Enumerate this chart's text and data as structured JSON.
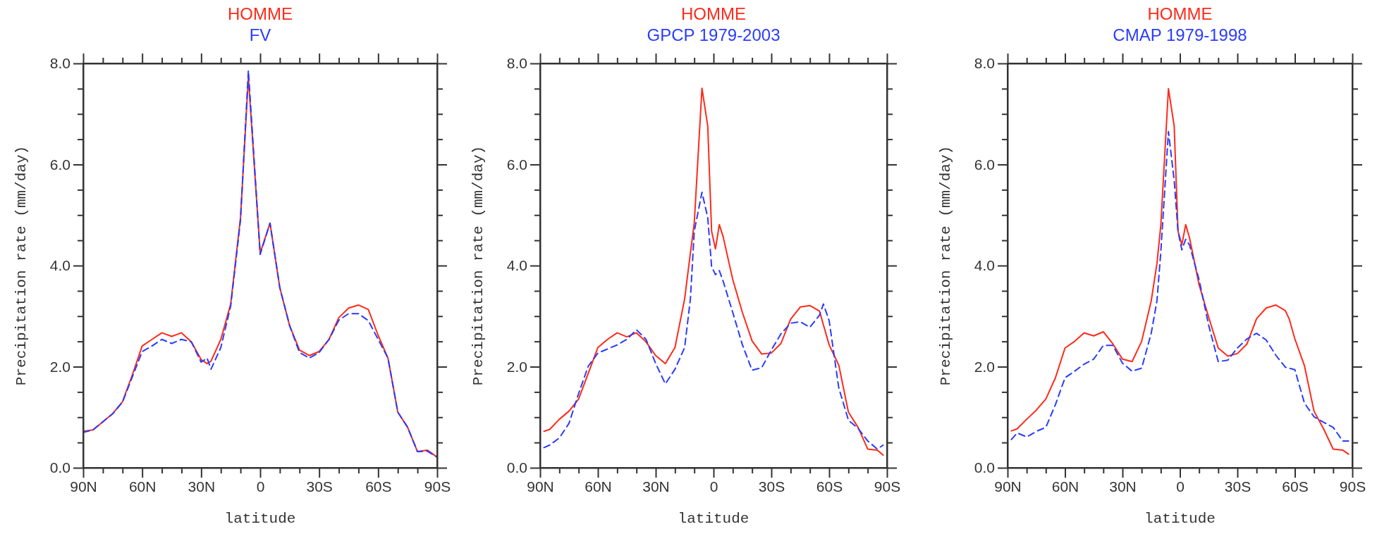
{
  "chart_data": [
    {
      "type": "line",
      "xlabel": "latitude",
      "ylabel": "Precipitation rate (mm/day)",
      "x": [
        90,
        85,
        80,
        75,
        70,
        65,
        60,
        55,
        50,
        45,
        40,
        35,
        30,
        27,
        25,
        20,
        15,
        10,
        6,
        0,
        -5,
        -10,
        -15,
        -20,
        -25,
        -30,
        -35,
        -40,
        -45,
        -50,
        -55,
        -60,
        -65,
        -70,
        -75,
        -80,
        -85,
        -90
      ],
      "series": [
        {
          "name": "HOMME",
          "color": "#ff2a1a",
          "line_style": "solid",
          "values": [
            0.72,
            0.75,
            0.91,
            1.07,
            1.31,
            1.84,
            2.41,
            2.54,
            2.67,
            2.6,
            2.67,
            2.49,
            2.14,
            2.06,
            2.11,
            2.54,
            3.24,
            4.95,
            7.73,
            4.25,
            4.84,
            3.56,
            2.81,
            2.33,
            2.22,
            2.3,
            2.54,
            2.97,
            3.16,
            3.22,
            3.13,
            2.62,
            2.17,
            1.1,
            0.8,
            0.32,
            0.35,
            0.21
          ]
        },
        {
          "name": "FV",
          "color": "#2a3cff",
          "line_style": "dashed",
          "values": [
            0.7,
            0.75,
            0.91,
            1.07,
            1.3,
            1.8,
            2.3,
            2.41,
            2.54,
            2.46,
            2.54,
            2.49,
            2.09,
            2.17,
            1.95,
            2.38,
            3.2,
            4.9,
            7.86,
            4.22,
            4.84,
            3.56,
            2.81,
            2.28,
            2.17,
            2.28,
            2.54,
            2.92,
            3.05,
            3.05,
            2.91,
            2.54,
            2.17,
            1.1,
            0.8,
            0.32,
            0.33,
            0.21
          ]
        }
      ],
      "xlim": [
        90,
        -90
      ],
      "xticks": [
        {
          "value": 90,
          "label": "90N"
        },
        {
          "value": 80,
          "label": null
        },
        {
          "value": 70,
          "label": null
        },
        {
          "value": 60,
          "label": "60N"
        },
        {
          "value": 50,
          "label": null
        },
        {
          "value": 40,
          "label": null
        },
        {
          "value": 30,
          "label": "30N"
        },
        {
          "value": 20,
          "label": null
        },
        {
          "value": 10,
          "label": null
        },
        {
          "value": 0,
          "label": "0"
        },
        {
          "value": -10,
          "label": null
        },
        {
          "value": -20,
          "label": null
        },
        {
          "value": -30,
          "label": "30S"
        },
        {
          "value": -40,
          "label": null
        },
        {
          "value": -50,
          "label": null
        },
        {
          "value": -60,
          "label": "60S"
        },
        {
          "value": -70,
          "label": null
        },
        {
          "value": -80,
          "label": null
        },
        {
          "value": -90,
          "label": "90S"
        }
      ],
      "ylim": [
        0,
        8
      ],
      "yticks": [
        {
          "value": 0,
          "label": "0.0"
        },
        {
          "value": 0.5,
          "label": null
        },
        {
          "value": 1,
          "label": null
        },
        {
          "value": 1.5,
          "label": null
        },
        {
          "value": 2,
          "label": "2.0"
        },
        {
          "value": 2.5,
          "label": null
        },
        {
          "value": 3,
          "label": null
        },
        {
          "value": 3.5,
          "label": null
        },
        {
          "value": 4,
          "label": "4.0"
        },
        {
          "value": 4.5,
          "label": null
        },
        {
          "value": 5,
          "label": null
        },
        {
          "value": 5.5,
          "label": null
        },
        {
          "value": 6,
          "label": "6.0"
        },
        {
          "value": 6.5,
          "label": null
        },
        {
          "value": 7,
          "label": null
        },
        {
          "value": 7.5,
          "label": null
        },
        {
          "value": 8,
          "label": "8.0"
        }
      ]
    },
    {
      "type": "line",
      "xlabel": "latitude",
      "ylabel": "Precipitation rate (mm/day)",
      "x": [
        88,
        85,
        80,
        75,
        70,
        65,
        60,
        55,
        50,
        45,
        40,
        35,
        30,
        25,
        20,
        15,
        12,
        10,
        6,
        3,
        1,
        -1,
        -3,
        -5,
        -10,
        -15,
        -20,
        -25,
        -30,
        -35,
        -40,
        -45,
        -50,
        -55,
        -57,
        -60,
        -65,
        -70,
        -75,
        -80,
        -85,
        -88
      ],
      "series": [
        {
          "name": "HOMME",
          "color": "#ff2a1a",
          "line_style": "solid",
          "values": [
            0.72,
            0.76,
            0.96,
            1.12,
            1.36,
            1.87,
            2.38,
            2.54,
            2.67,
            2.59,
            2.67,
            2.49,
            2.22,
            2.06,
            2.38,
            3.34,
            4.25,
            4.84,
            7.51,
            6.76,
            4.68,
            4.33,
            4.81,
            4.57,
            3.72,
            3.07,
            2.51,
            2.25,
            2.27,
            2.46,
            2.94,
            3.18,
            3.21,
            3.1,
            2.83,
            2.43,
            2.03,
            1.1,
            0.8,
            0.37,
            0.35,
            0.25
          ]
        },
        {
          "name": "GPCP 1979-2003",
          "color": "#2a3cff",
          "line_style": "dashed",
          "values": [
            0.4,
            0.45,
            0.59,
            0.88,
            1.47,
            2.01,
            2.27,
            2.35,
            2.43,
            2.54,
            2.73,
            2.54,
            2.06,
            1.66,
            1.95,
            2.38,
            3.34,
            4.68,
            5.45,
            4.95,
            3.98,
            3.82,
            3.9,
            3.69,
            3.07,
            2.43,
            1.93,
            1.98,
            2.33,
            2.65,
            2.86,
            2.89,
            2.78,
            3.02,
            3.24,
            2.91,
            1.58,
            0.94,
            0.78,
            0.53,
            0.37,
            0.45
          ]
        }
      ],
      "xlim": [
        90,
        -90
      ],
      "xticks": [
        {
          "value": 90,
          "label": "90N"
        },
        {
          "value": 80,
          "label": null
        },
        {
          "value": 70,
          "label": null
        },
        {
          "value": 60,
          "label": "60N"
        },
        {
          "value": 50,
          "label": null
        },
        {
          "value": 40,
          "label": null
        },
        {
          "value": 30,
          "label": "30N"
        },
        {
          "value": 20,
          "label": null
        },
        {
          "value": 10,
          "label": null
        },
        {
          "value": 0,
          "label": "0"
        },
        {
          "value": -10,
          "label": null
        },
        {
          "value": -20,
          "label": null
        },
        {
          "value": -30,
          "label": "30S"
        },
        {
          "value": -40,
          "label": null
        },
        {
          "value": -50,
          "label": null
        },
        {
          "value": -60,
          "label": "60S"
        },
        {
          "value": -70,
          "label": null
        },
        {
          "value": -80,
          "label": null
        },
        {
          "value": -90,
          "label": "90S"
        }
      ],
      "ylim": [
        0,
        8
      ],
      "yticks": [
        {
          "value": 0,
          "label": "0.0"
        },
        {
          "value": 0.5,
          "label": null
        },
        {
          "value": 1,
          "label": null
        },
        {
          "value": 1.5,
          "label": null
        },
        {
          "value": 2,
          "label": "2.0"
        },
        {
          "value": 2.5,
          "label": null
        },
        {
          "value": 3,
          "label": null
        },
        {
          "value": 3.5,
          "label": null
        },
        {
          "value": 4,
          "label": "4.0"
        },
        {
          "value": 4.5,
          "label": null
        },
        {
          "value": 5,
          "label": null
        },
        {
          "value": 5.5,
          "label": null
        },
        {
          "value": 6,
          "label": "6.0"
        },
        {
          "value": 6.5,
          "label": null
        },
        {
          "value": 7,
          "label": null
        },
        {
          "value": 7.5,
          "label": null
        },
        {
          "value": 8,
          "label": "8.0"
        }
      ]
    },
    {
      "type": "line",
      "xlabel": "latitude",
      "ylabel": "Precipitation rate (mm/day)",
      "x": [
        88,
        85,
        80,
        75,
        70,
        65,
        60,
        55,
        50,
        45,
        40,
        35,
        30,
        25,
        20,
        15,
        12,
        10,
        6,
        3,
        1,
        -1,
        -3,
        -5,
        -10,
        -15,
        -20,
        -25,
        -30,
        -35,
        -40,
        -45,
        -50,
        -55,
        -57,
        -60,
        -65,
        -70,
        -75,
        -80,
        -85,
        -88
      ],
      "series": [
        {
          "name": "HOMME",
          "color": "#ff2a1a",
          "line_style": "solid",
          "values": [
            0.73,
            0.77,
            0.96,
            1.14,
            1.36,
            1.78,
            2.37,
            2.5,
            2.67,
            2.61,
            2.69,
            2.45,
            2.15,
            2.1,
            2.5,
            3.3,
            4.04,
            4.79,
            7.5,
            6.76,
            4.68,
            4.41,
            4.81,
            4.55,
            3.62,
            2.98,
            2.37,
            2.21,
            2.26,
            2.45,
            2.95,
            3.16,
            3.22,
            3.11,
            2.95,
            2.55,
            2.02,
            1.12,
            0.77,
            0.37,
            0.35,
            0.27
          ]
        },
        {
          "name": "CMAP 1979-1998",
          "color": "#2a3cff",
          "line_style": "dashed",
          "values": [
            0.56,
            0.69,
            0.61,
            0.72,
            0.8,
            1.25,
            1.78,
            1.91,
            2.05,
            2.15,
            2.42,
            2.42,
            2.07,
            1.91,
            1.97,
            2.66,
            3.3,
            4.26,
            6.65,
            5.69,
            4.68,
            4.31,
            4.52,
            4.41,
            3.72,
            2.82,
            2.1,
            2.13,
            2.37,
            2.55,
            2.66,
            2.53,
            2.23,
            1.99,
            1.97,
            1.94,
            1.28,
            1.01,
            0.9,
            0.8,
            0.53,
            0.53
          ]
        }
      ],
      "xlim": [
        90,
        -90
      ],
      "xticks": [
        {
          "value": 90,
          "label": "90N"
        },
        {
          "value": 80,
          "label": null
        },
        {
          "value": 70,
          "label": null
        },
        {
          "value": 60,
          "label": "60N"
        },
        {
          "value": 50,
          "label": null
        },
        {
          "value": 40,
          "label": null
        },
        {
          "value": 30,
          "label": "30N"
        },
        {
          "value": 20,
          "label": null
        },
        {
          "value": 10,
          "label": null
        },
        {
          "value": 0,
          "label": "0"
        },
        {
          "value": -10,
          "label": null
        },
        {
          "value": -20,
          "label": null
        },
        {
          "value": -30,
          "label": "30S"
        },
        {
          "value": -40,
          "label": null
        },
        {
          "value": -50,
          "label": null
        },
        {
          "value": -60,
          "label": "60S"
        },
        {
          "value": -70,
          "label": null
        },
        {
          "value": -80,
          "label": null
        },
        {
          "value": -90,
          "label": "90S"
        }
      ],
      "ylim": [
        0,
        8
      ],
      "yticks": [
        {
          "value": 0,
          "label": "0.0"
        },
        {
          "value": 0.5,
          "label": null
        },
        {
          "value": 1,
          "label": null
        },
        {
          "value": 1.5,
          "label": null
        },
        {
          "value": 2,
          "label": "2.0"
        },
        {
          "value": 2.5,
          "label": null
        },
        {
          "value": 3,
          "label": null
        },
        {
          "value": 3.5,
          "label": null
        },
        {
          "value": 4,
          "label": "4.0"
        },
        {
          "value": 4.5,
          "label": null
        },
        {
          "value": 5,
          "label": null
        },
        {
          "value": 5.5,
          "label": null
        },
        {
          "value": 6,
          "label": "6.0"
        },
        {
          "value": 6.5,
          "label": null
        },
        {
          "value": 7,
          "label": null
        },
        {
          "value": 7.5,
          "label": null
        },
        {
          "value": 8,
          "label": "8.0"
        }
      ]
    }
  ]
}
